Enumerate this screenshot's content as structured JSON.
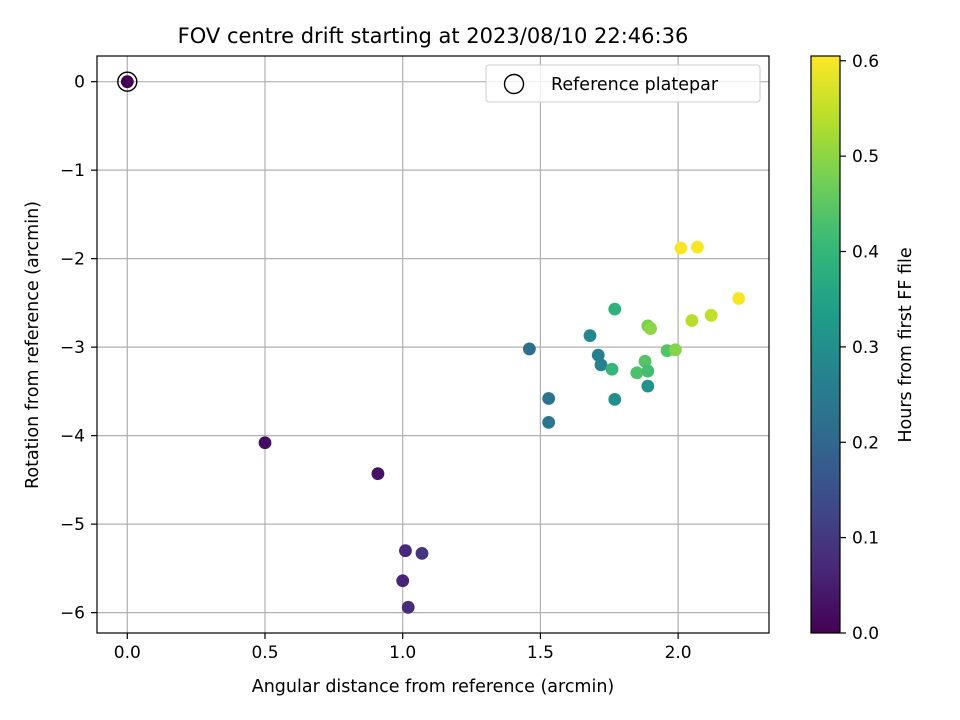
{
  "chart_data": {
    "type": "scatter",
    "title": "FOV centre drift starting at 2023/08/10 22:46:36",
    "xlabel": "Angular distance from reference (arcmin)",
    "ylabel": "Rotation from reference (arcmin)",
    "xlim": [
      -0.11,
      2.33
    ],
    "ylim": [
      -6.23,
      0.29
    ],
    "xticks": [
      0.0,
      0.5,
      1.0,
      1.5,
      2.0
    ],
    "xtick_labels": [
      "0.0",
      "0.5",
      "1.0",
      "1.5",
      "2.0"
    ],
    "yticks": [
      0,
      -1,
      -2,
      -3,
      -4,
      -5,
      -6
    ],
    "ytick_labels": [
      "0",
      "−1",
      "−2",
      "−3",
      "−4",
      "−5",
      "−6"
    ],
    "grid": true,
    "legend": {
      "location": "upper right",
      "entries": [
        "Reference platepar"
      ]
    },
    "reference_point": {
      "x": 0.0,
      "y": 0.0,
      "label": "Reference platepar"
    },
    "colorbar": {
      "label": "Hours from first FF file",
      "colormap": "viridis",
      "range": [
        0.0,
        0.605
      ],
      "ticks": [
        0.0,
        0.1,
        0.2,
        0.3,
        0.4,
        0.5,
        0.6
      ],
      "tick_labels": [
        "0.0",
        "0.1",
        "0.2",
        "0.3",
        "0.4",
        "0.5",
        "0.6"
      ]
    },
    "points": [
      {
        "x": 0.0,
        "y": 0.0,
        "hours": 0.0
      },
      {
        "x": 0.5,
        "y": -4.08,
        "hours": 0.02
      },
      {
        "x": 0.91,
        "y": -4.43,
        "hours": 0.03
      },
      {
        "x": 1.0,
        "y": -5.64,
        "hours": 0.06
      },
      {
        "x": 1.01,
        "y": -5.3,
        "hours": 0.07
      },
      {
        "x": 1.07,
        "y": -5.33,
        "hours": 0.09
      },
      {
        "x": 1.02,
        "y": -5.94,
        "hours": 0.08
      },
      {
        "x": 1.46,
        "y": -3.02,
        "hours": 0.22
      },
      {
        "x": 1.53,
        "y": -3.58,
        "hours": 0.23
      },
      {
        "x": 1.53,
        "y": -3.85,
        "hours": 0.24
      },
      {
        "x": 1.68,
        "y": -2.87,
        "hours": 0.28
      },
      {
        "x": 1.71,
        "y": -3.09,
        "hours": 0.26
      },
      {
        "x": 1.72,
        "y": -3.2,
        "hours": 0.27
      },
      {
        "x": 1.77,
        "y": -3.59,
        "hours": 0.3
      },
      {
        "x": 1.89,
        "y": -3.44,
        "hours": 0.31
      },
      {
        "x": 1.76,
        "y": -3.25,
        "hours": 0.4
      },
      {
        "x": 1.77,
        "y": -2.57,
        "hours": 0.39
      },
      {
        "x": 1.85,
        "y": -3.29,
        "hours": 0.43
      },
      {
        "x": 1.88,
        "y": -3.16,
        "hours": 0.44
      },
      {
        "x": 1.89,
        "y": -3.27,
        "hours": 0.42
      },
      {
        "x": 1.89,
        "y": -2.76,
        "hours": 0.48
      },
      {
        "x": 1.9,
        "y": -2.79,
        "hours": 0.5
      },
      {
        "x": 1.96,
        "y": -3.04,
        "hours": 0.44
      },
      {
        "x": 1.99,
        "y": -3.03,
        "hours": 0.49
      },
      {
        "x": 2.05,
        "y": -2.7,
        "hours": 0.54
      },
      {
        "x": 2.12,
        "y": -2.64,
        "hours": 0.55
      },
      {
        "x": 2.01,
        "y": -1.88,
        "hours": 0.6
      },
      {
        "x": 2.07,
        "y": -1.87,
        "hours": 0.6
      },
      {
        "x": 2.22,
        "y": -2.45,
        "hours": 0.6
      }
    ]
  }
}
